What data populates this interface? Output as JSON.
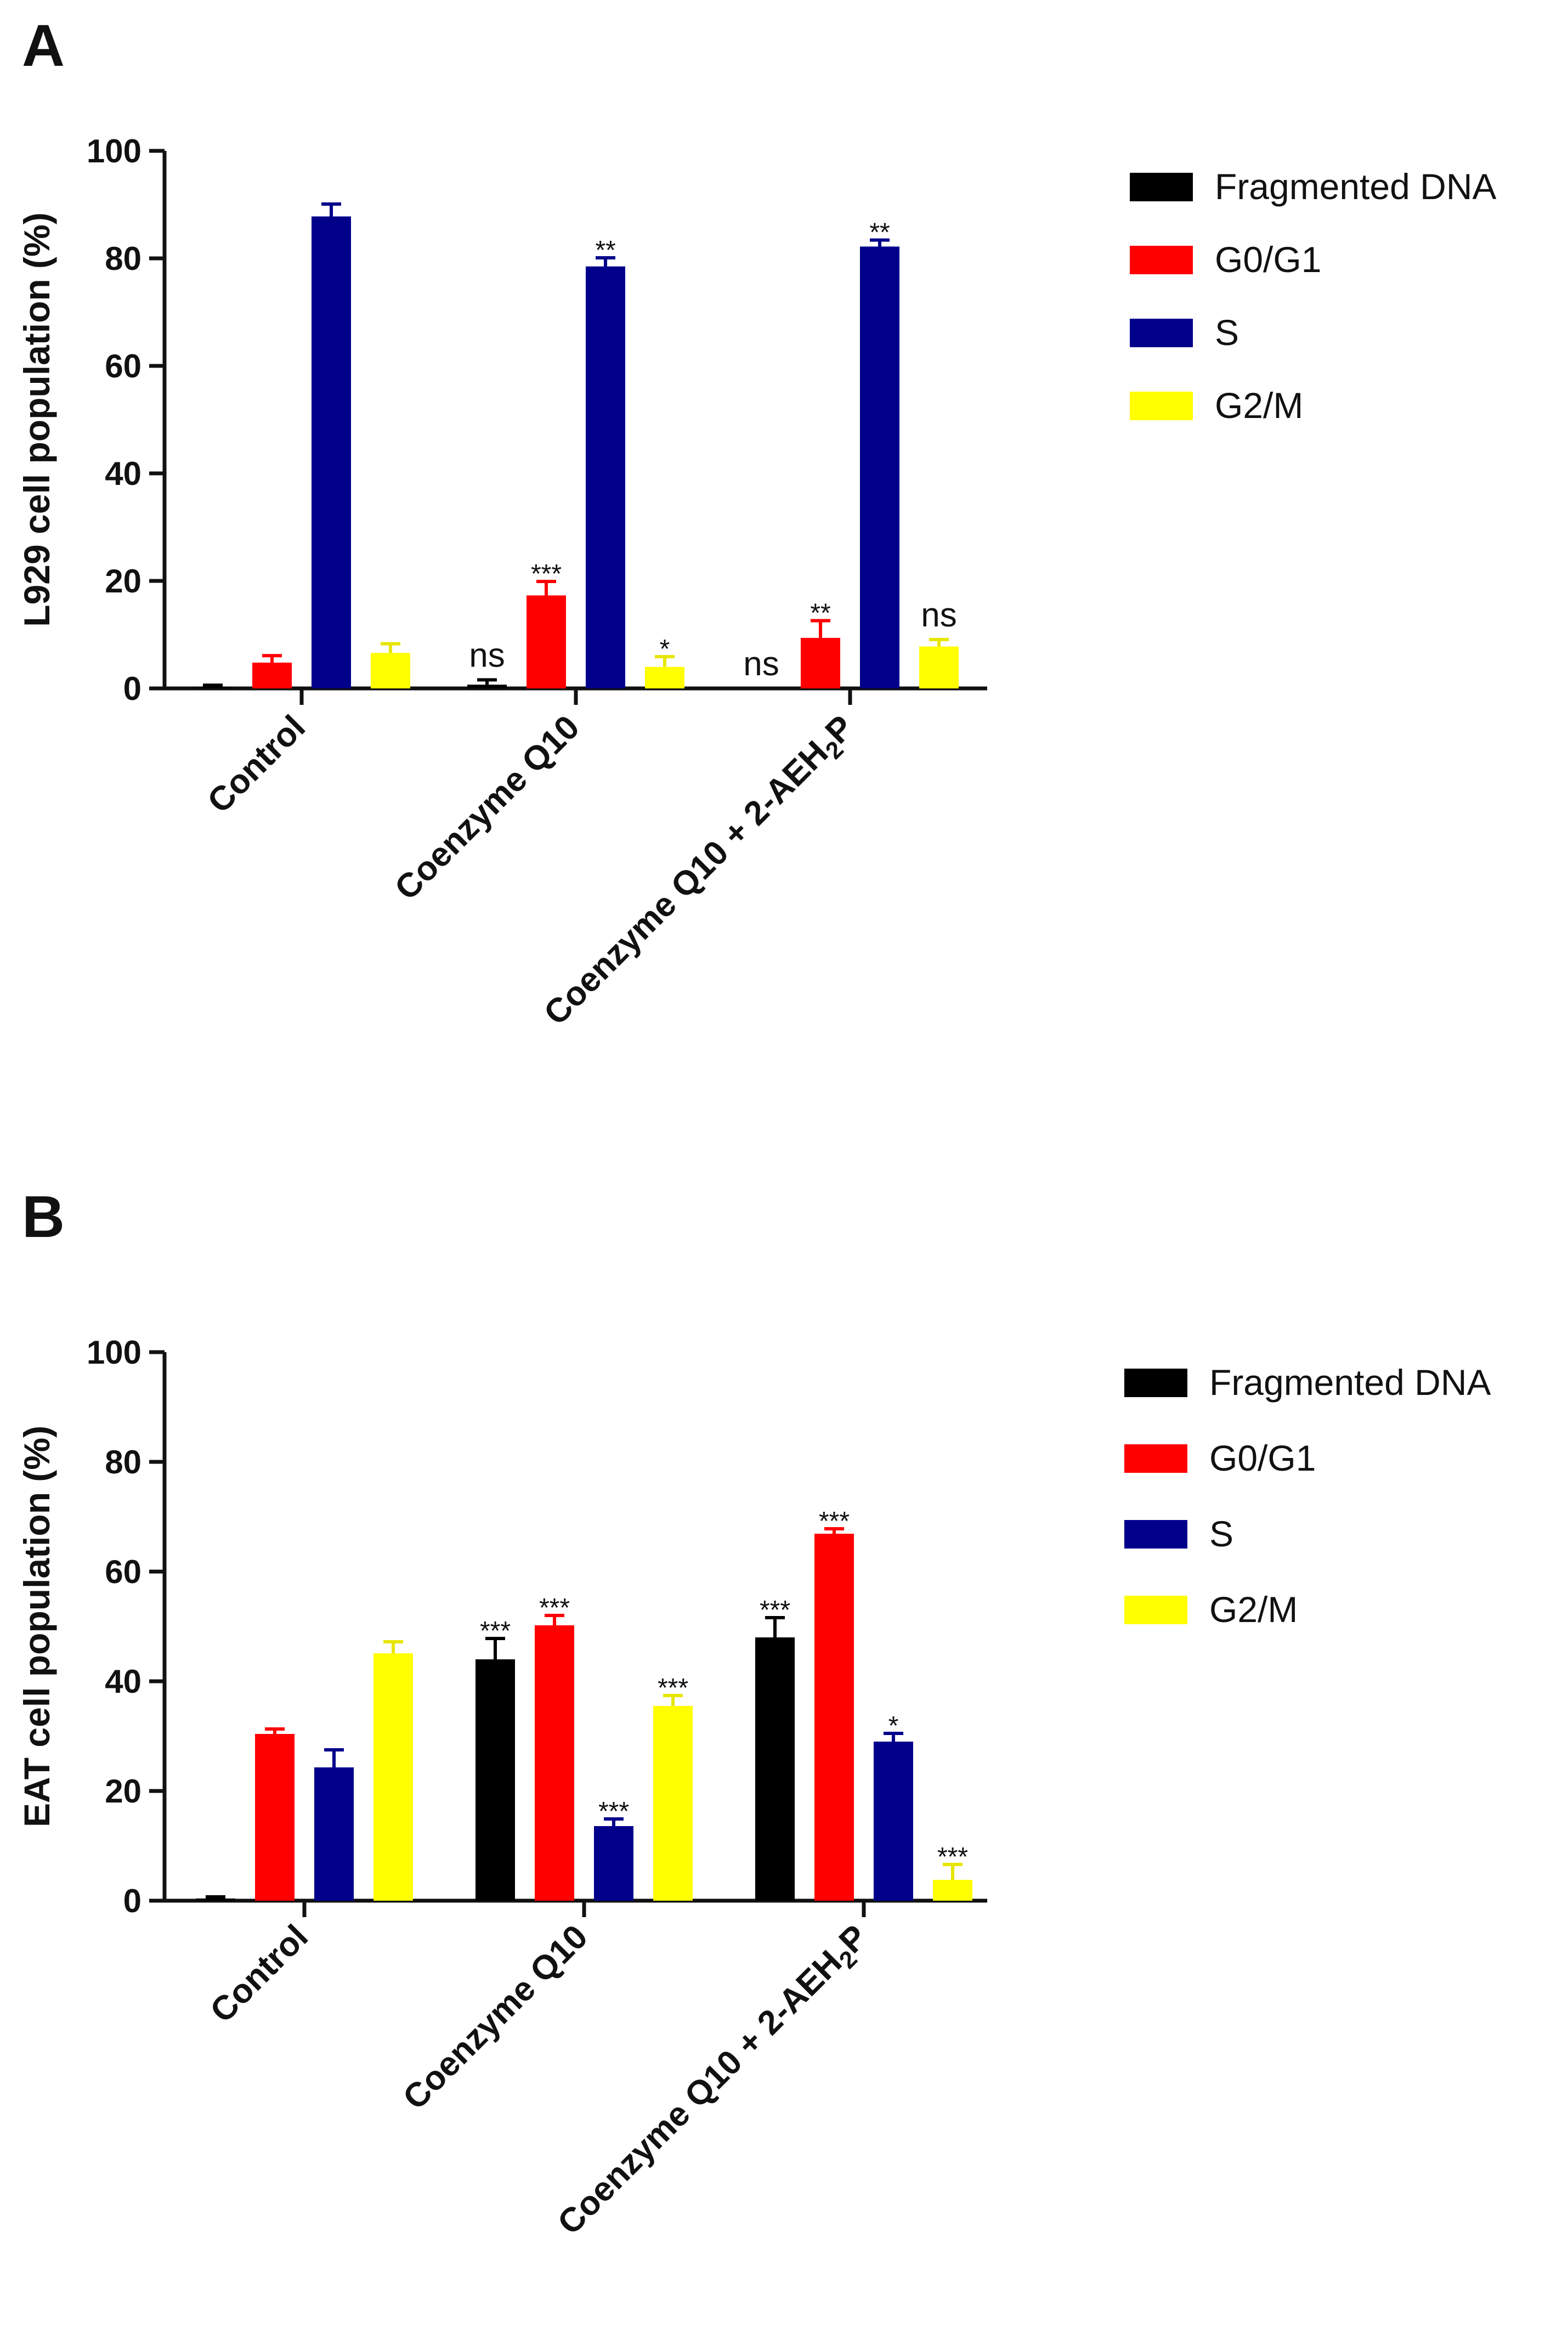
{
  "chart_data": [
    {
      "panel": "A",
      "type": "bar",
      "ylabel": "L929 cell population (%)",
      "ylim": [
        0,
        100
      ],
      "yticks": [
        0,
        20,
        40,
        60,
        80,
        100
      ],
      "categories": [
        "Control",
        "Coenzyme Q10",
        "Coenzyme Q10 + 2-AEH2P"
      ],
      "series": [
        {
          "name": "Fragmented DNA",
          "color": "#000000",
          "values": [
            0.3,
            0.7,
            0
          ],
          "errors": [
            0.3,
            0.9,
            0
          ],
          "sig": [
            "",
            "ns",
            "ns"
          ]
        },
        {
          "name": "G0/G1",
          "color": "#ff0000",
          "values": [
            4.8,
            17.3,
            9.4
          ],
          "errors": [
            1.3,
            2.6,
            3.2
          ],
          "sig": [
            "",
            "***",
            "**"
          ]
        },
        {
          "name": "S",
          "color": "#00008b",
          "values": [
            87.8,
            78.5,
            82.2
          ],
          "errors": [
            2.3,
            1.6,
            1.2
          ],
          "sig": [
            "",
            "**",
            "**"
          ]
        },
        {
          "name": "G2/M",
          "color": "#ffff00",
          "values": [
            6.6,
            4.0,
            7.8
          ],
          "errors": [
            1.7,
            1.9,
            1.3
          ],
          "sig": [
            "",
            "*",
            "ns"
          ]
        }
      ]
    },
    {
      "panel": "B",
      "type": "bar",
      "ylabel": "EAT cell population (%)",
      "ylim": [
        0,
        100
      ],
      "yticks": [
        0,
        20,
        40,
        60,
        80,
        100
      ],
      "categories": [
        "Control",
        "Coenzyme Q10",
        "Coenzyme Q10 + 2-AEH2P"
      ],
      "series": [
        {
          "name": "Fragmented DNA",
          "color": "#000000",
          "values": [
            0.4,
            44.0,
            48.0
          ],
          "errors": [
            0.3,
            3.8,
            3.6
          ],
          "sig": [
            "",
            "***",
            "***"
          ]
        },
        {
          "name": "G0/G1",
          "color": "#ff0000",
          "values": [
            30.4,
            50.2,
            66.9
          ],
          "errors": [
            0.9,
            1.8,
            0.9
          ],
          "sig": [
            "",
            "***",
            "***"
          ]
        },
        {
          "name": "S",
          "color": "#00008b",
          "values": [
            24.3,
            13.6,
            29.0
          ],
          "errors": [
            3.2,
            1.3,
            1.5
          ],
          "sig": [
            "",
            "***",
            "*"
          ]
        },
        {
          "name": "G2/M",
          "color": "#ffff00",
          "values": [
            45.1,
            35.5,
            3.8
          ],
          "errors": [
            2.1,
            1.9,
            2.8
          ],
          "sig": [
            "",
            "***",
            "***"
          ]
        }
      ]
    }
  ]
}
